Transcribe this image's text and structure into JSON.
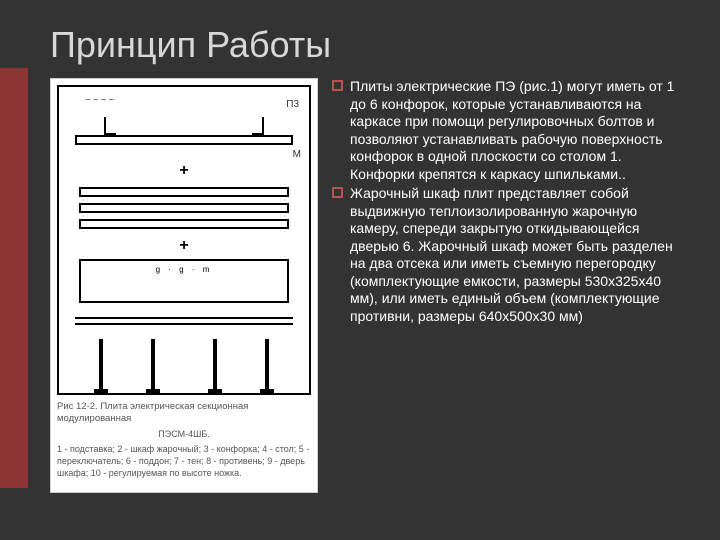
{
  "title": "Принцип Работы",
  "figure": {
    "labels": {
      "wavy": "~~~~",
      "plus": "+",
      "dots": "g · g · m",
      "mark1": "П3",
      "mark2": "М"
    },
    "caption_title": "Рис 12-2. Плита электрическая секционная модулированная",
    "caption_model": "ПЭСМ-4ШБ.",
    "caption_legend": "1 - подставка; 2 - шкаф жарочный; 3 - конфорка; 4 - стол; 5 - переключатель; 6 - поддон; 7 - тен; 8 - противень; 9 - дверь шкафа; 10 - регулируемая по высоте ножка."
  },
  "paragraphs": [
    "Плиты электрические ПЭ (рис.1) могут иметь от 1 до 6 конфорок, которые устанавливаются на каркасе при помощи регулировочных болтов и позволяют устанавливать рабочую поверхность конфорок в одной плоскости со столом 1. Конфорки крепятся к каркасу шпильками..",
    "Жарочный шкаф плит представляет собой выдвижную теплоизолированную жарочную камеру, спереди закрытую откидывающейся дверью 6. Жарочный шкаф может быть разделен на два отсека или иметь съемную перегородку (комплектующие емкости, размеры 530х325х40 мм), или иметь единый объем (комплектующие противни, размеры 640х500х30 мм)"
  ],
  "colors": {
    "background": "#333333",
    "accent": "#8b3535",
    "bullet": "#b85450",
    "text": "#ffffff",
    "title": "#d8d8d8"
  }
}
